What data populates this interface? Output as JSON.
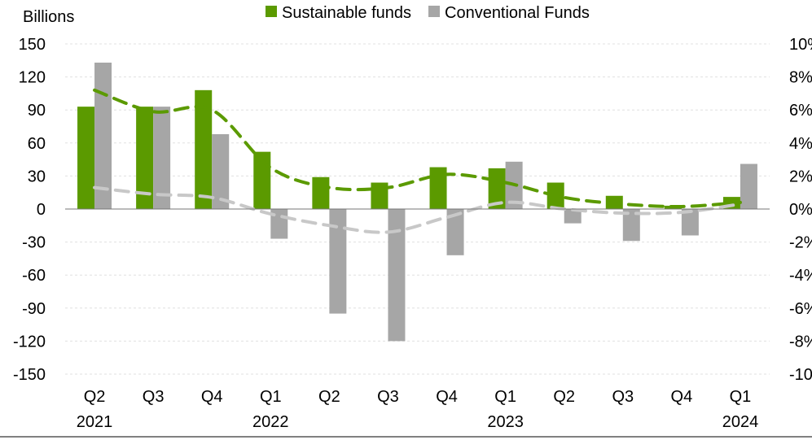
{
  "chart_data": {
    "type": "bar",
    "ylabel_left": "Billions",
    "legend": {
      "position": "top",
      "entries": [
        {
          "name": "Sustainable funds",
          "color": "#5b9a00"
        },
        {
          "name": "Conventional Funds",
          "color": "#a6a6a6"
        }
      ]
    },
    "categories": [
      "Q2",
      "Q3",
      "Q4",
      "Q1",
      "Q2",
      "Q3",
      "Q4",
      "Q1",
      "Q2",
      "Q3",
      "Q4",
      "Q1"
    ],
    "year_labels": [
      "2021",
      "",
      "",
      "2022",
      "",
      "",
      "",
      "2023",
      "",
      "",
      "",
      "2024"
    ],
    "series": [
      {
        "name": "Sustainable funds",
        "color": "#5b9a00",
        "values": [
          93,
          93,
          108,
          52,
          29,
          24,
          38,
          37,
          24,
          12,
          3,
          11
        ]
      },
      {
        "name": "Conventional Funds",
        "color": "#a6a6a6",
        "values": [
          133,
          93,
          68,
          -27,
          -95,
          -120,
          -42,
          43,
          -13,
          -29,
          -24,
          41
        ]
      }
    ],
    "lines": [
      {
        "series": "Sustainable funds",
        "axis": "right",
        "style": "dashed",
        "color": "#5b9a00",
        "values": [
          7.2,
          5.9,
          6.0,
          2.5,
          1.3,
          1.3,
          2.1,
          1.6,
          0.7,
          0.3,
          0.15,
          0.4
        ]
      },
      {
        "series": "Conventional Funds",
        "axis": "right",
        "style": "dashed",
        "color": "#c8c8c8",
        "values": [
          1.3,
          0.9,
          0.7,
          -0.3,
          -1.0,
          -1.4,
          -0.5,
          0.4,
          0.0,
          -0.25,
          -0.2,
          0.3
        ]
      }
    ],
    "y_left": {
      "min": -150,
      "max": 150,
      "ticks": [
        "150",
        "120",
        "90",
        "60",
        "30",
        "0",
        "-30",
        "-60",
        "-90",
        "-120",
        "-150"
      ]
    },
    "y_right": {
      "min": -10,
      "max": 10,
      "ticks": [
        "10%",
        "8%",
        "6%",
        "4%",
        "2%",
        "0%",
        "-2%",
        "-4%",
        "-6%",
        "-8%",
        "-10%"
      ]
    },
    "grid": true
  }
}
